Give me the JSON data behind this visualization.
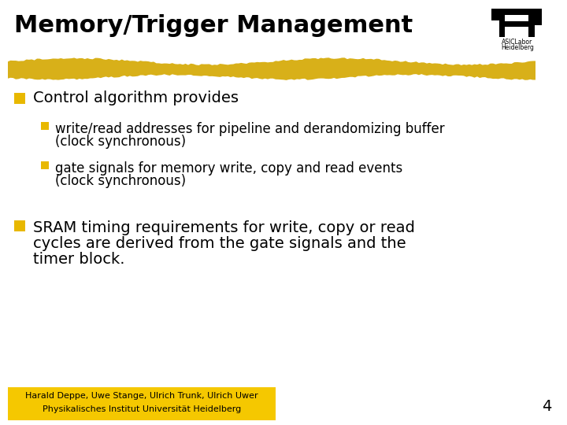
{
  "title": "Memory/Trigger Management",
  "title_fontsize": 22,
  "title_color": "#000000",
  "background_color": "#ffffff",
  "highlight_color": "#E8B800",
  "bullet_color": "#E8B800",
  "bullet1_text": "Control algorithm provides",
  "sub_bullet1_line1": "write/read addresses for pipeline and derandomizing buffer",
  "sub_bullet1_line2": "(clock synchronous)",
  "sub_bullet2_line1": "gate signals for memory write, copy and read events",
  "sub_bullet2_line2": "(clock synchronous)",
  "bullet2_text_line1": "SRAM timing requirements for write, copy or read",
  "bullet2_text_line2": "cycles are derived from the gate signals and the",
  "bullet2_text_line3": "timer block.",
  "footer_text1": "Harald Deppe, Uwe Stange, Ulrich Trunk, Ulrich Uwer",
  "footer_text2": "Physikalisches Institut Universität Heidelberg",
  "footer_bg": "#F5C800",
  "page_number": "4",
  "body_fontsize": 14,
  "sub_fontsize": 12,
  "footer_fontsize": 8,
  "page_fontsize": 14
}
